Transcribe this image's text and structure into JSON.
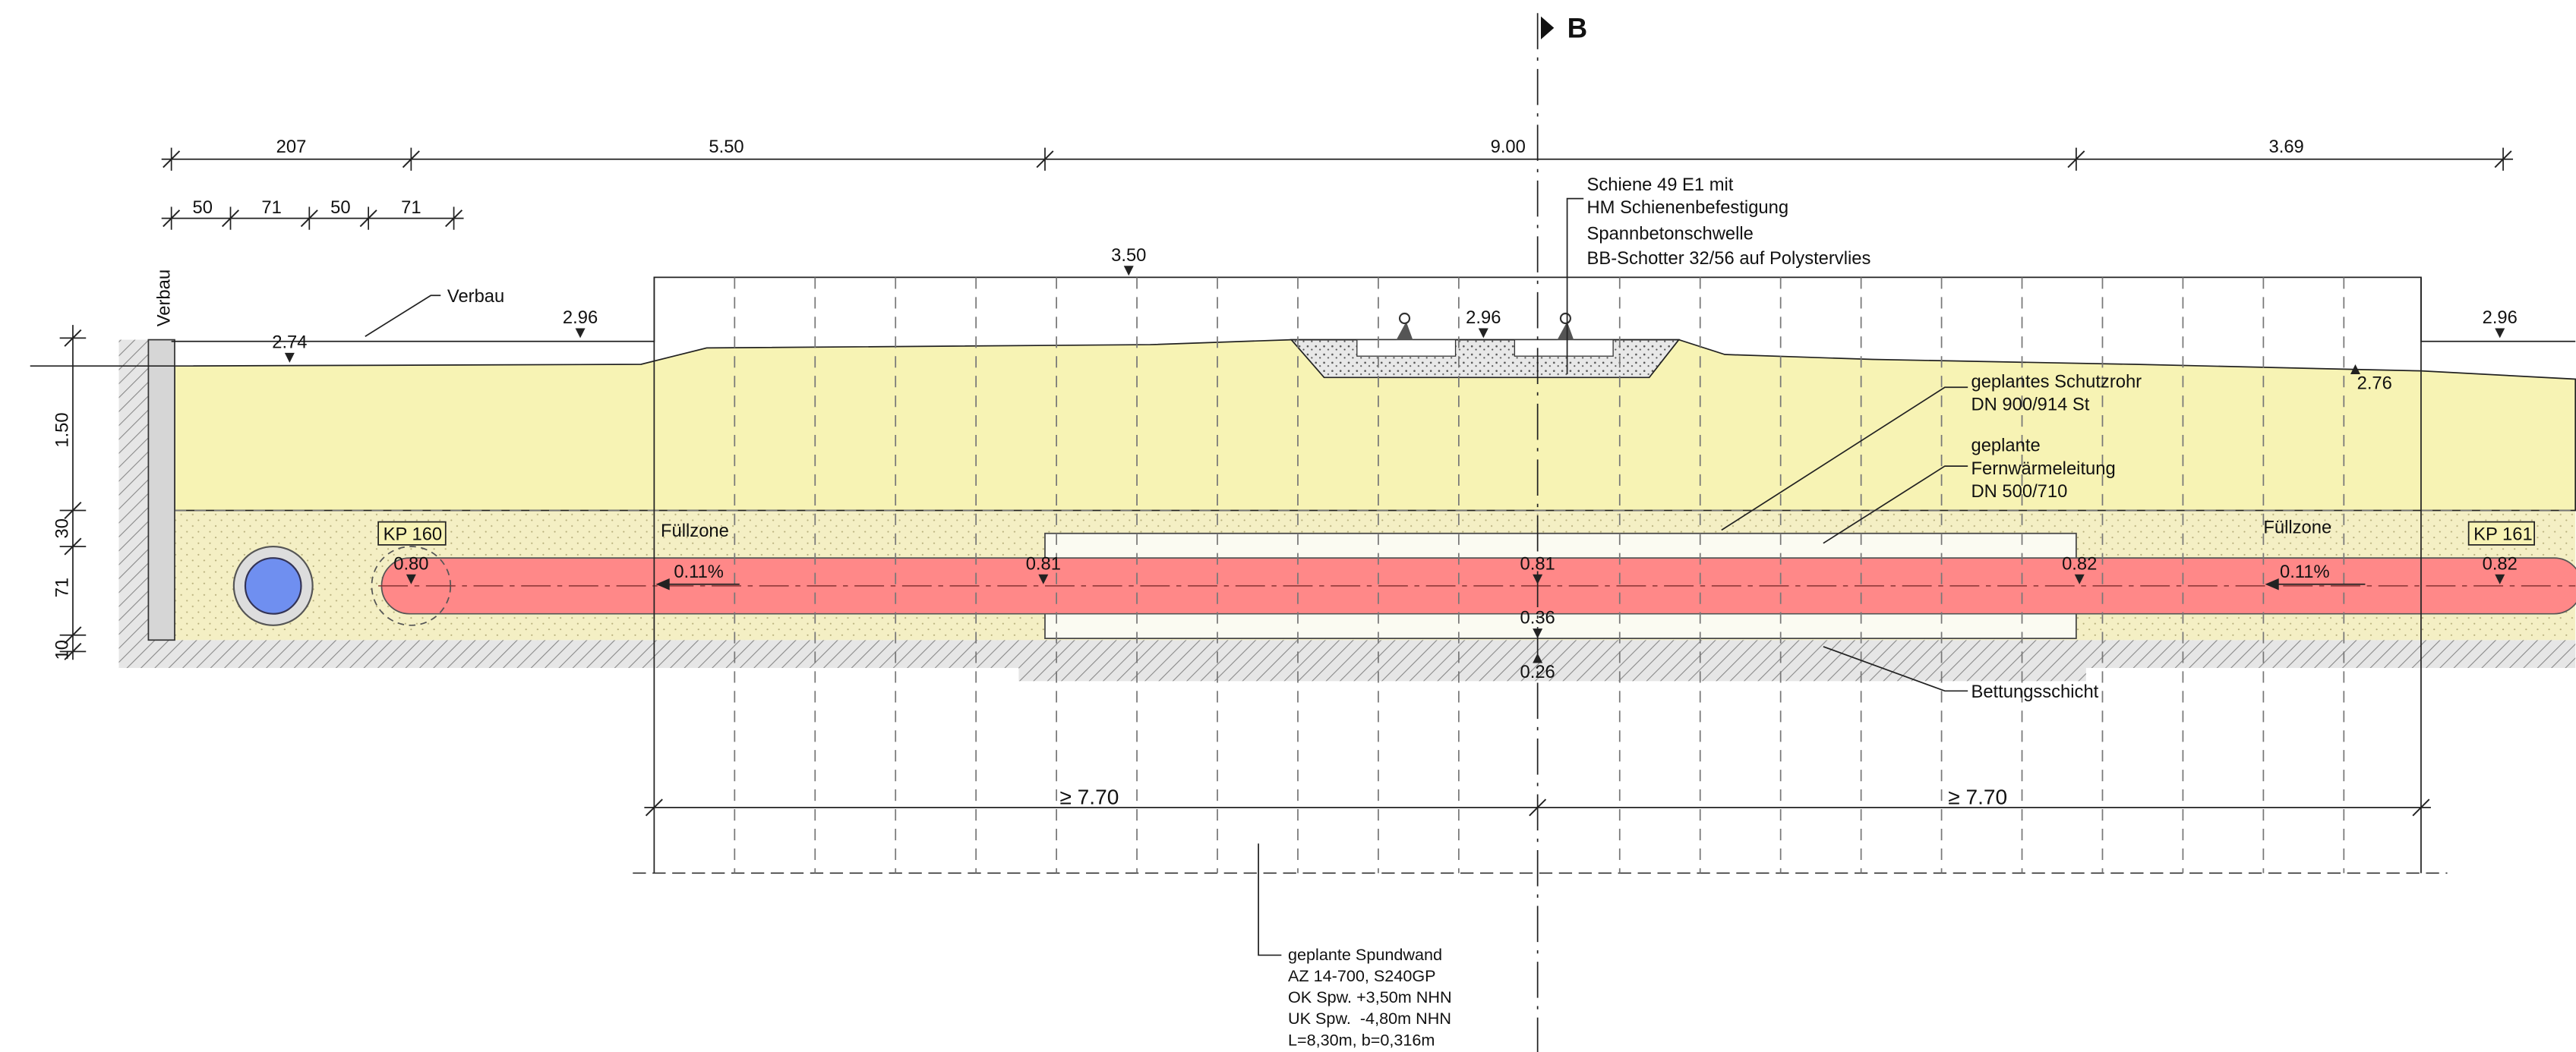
{
  "section_marker": "B",
  "dimensions": {
    "top": [
      "207",
      "5.50",
      "9.00",
      "3.69"
    ],
    "detail": [
      "50",
      "71",
      "50",
      "71"
    ],
    "left": [
      "1.50",
      "30",
      "71",
      "10"
    ],
    "bottom": [
      "≥ 7.70",
      "≥ 7.70"
    ]
  },
  "labels": {
    "verbau_vertical": "Verbau",
    "verbau": "Verbau",
    "fuellzone": [
      "Füllzone",
      "Füllzone"
    ],
    "kp": [
      "KP 160",
      "KP 161"
    ],
    "bettung": "Bettungsschicht"
  },
  "levels": [
    "2.74",
    "2.96",
    "3.50",
    "2.96",
    "2.96",
    "2.76"
  ],
  "pipe_levels": [
    "0.80",
    "0.81",
    "0.81",
    "0.82",
    "0.82",
    "0.36",
    "0.26"
  ],
  "gradients": [
    "0.11%",
    "0.11%"
  ],
  "notes": {
    "rail": [
      "Schiene 49 E1 mit",
      "HM Schienenbefestigung",
      "Spannbetonschwelle",
      "BB-Schotter 32/56 auf Polystervlies"
    ],
    "schutzrohr": [
      "geplantes Schutzrohr",
      "DN 900/914 St"
    ],
    "fernwaerme": [
      "geplante",
      "Fernwärmeleitung",
      "DN 500/710"
    ],
    "spundwand": [
      "geplante Spundwand",
      "AZ 14-700, S240GP",
      "OK Spw. +3,50m NHN",
      "UK Spw.  -4,80m NHN",
      "L=8,30m, b=0,316m"
    ]
  }
}
